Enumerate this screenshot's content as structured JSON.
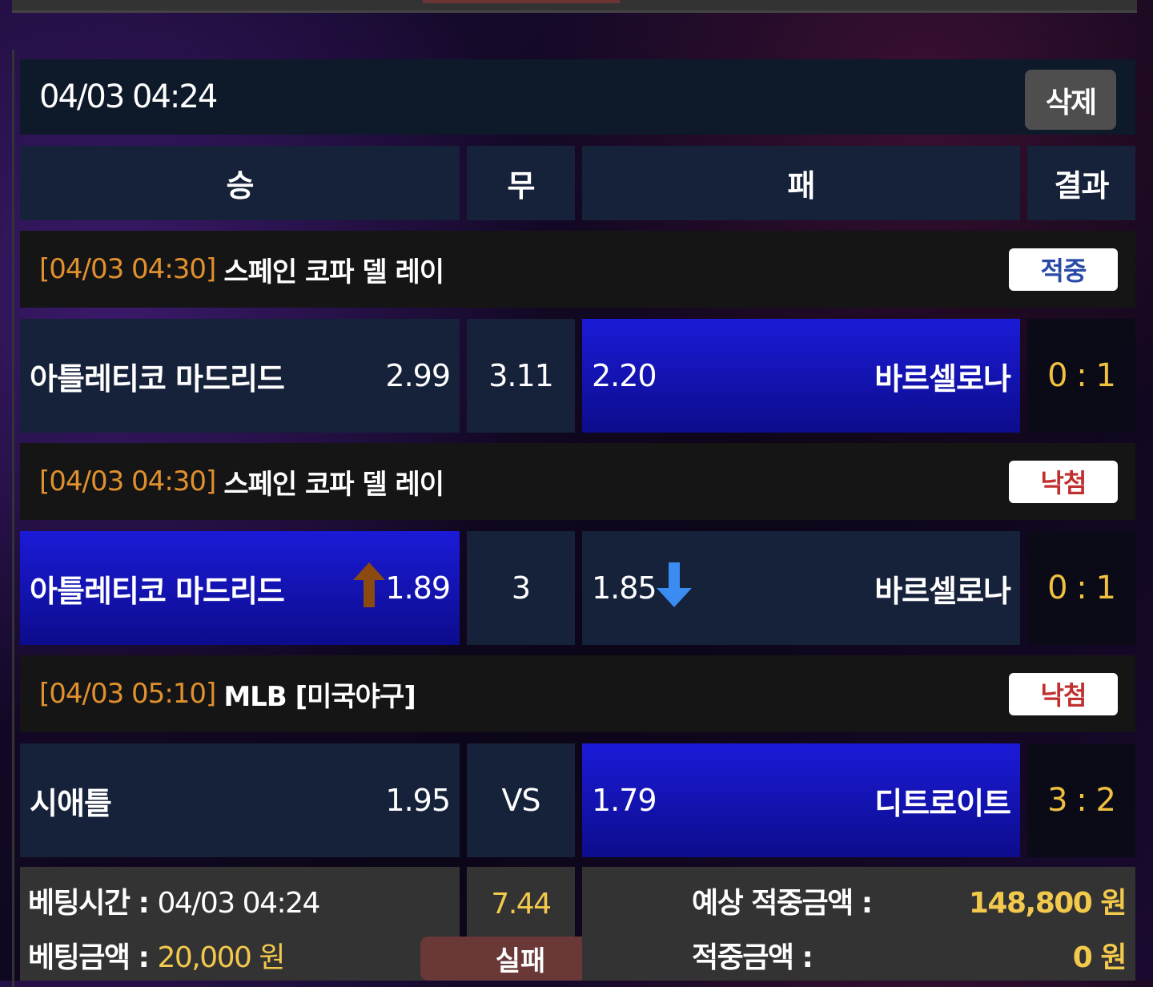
{
  "header": {
    "datetime": "04/03 04:24",
    "delete_label": "삭제"
  },
  "columns": {
    "win": "승",
    "draw": "무",
    "lose": "패",
    "result": "결과"
  },
  "bets": [
    {
      "time": "[04/03 04:30]",
      "league": "스페인 코파 델 레이",
      "status": "적중",
      "status_color": "#2a4aa8",
      "home": "아틀레티코 마드리드",
      "home_odds": "2.99",
      "draw": "3.11",
      "away_odds": "2.20",
      "away": "바르셀로나",
      "score": "0 : 1",
      "selected": "away"
    },
    {
      "time": "[04/03 04:30]",
      "league": "스페인 코파 델 레이",
      "status": "낙첨",
      "status_color": "#c03030",
      "home": "아틀레티코 마드리드",
      "home_odds": "1.89",
      "home_trend": "up-arrow-icon",
      "draw": "3",
      "away_odds": "1.85",
      "away_trend": "down-arrow-icon",
      "away": "바르셀로나",
      "score": "0 : 1",
      "selected": "home"
    },
    {
      "time": "[04/03 05:10]",
      "league": "MLB [미국야구]",
      "status": "낙첨",
      "status_color": "#c03030",
      "home": "시애틀",
      "home_odds": "1.95",
      "draw": "VS",
      "away_odds": "1.79",
      "away": "디트로이트",
      "score": "3 : 2",
      "selected": "away"
    }
  ],
  "footer": {
    "bet_time_label": "베팅시간 :",
    "bet_time": "04/03 04:24",
    "bet_amount_label": "베팅금액 :",
    "bet_amount": "20,000 원",
    "total_odds": "7.44",
    "result_label": "실패",
    "expected_label": "예상 적중금액 :",
    "expected": "148,800 원",
    "won_label": "적중금액 :",
    "won": "0 원"
  }
}
